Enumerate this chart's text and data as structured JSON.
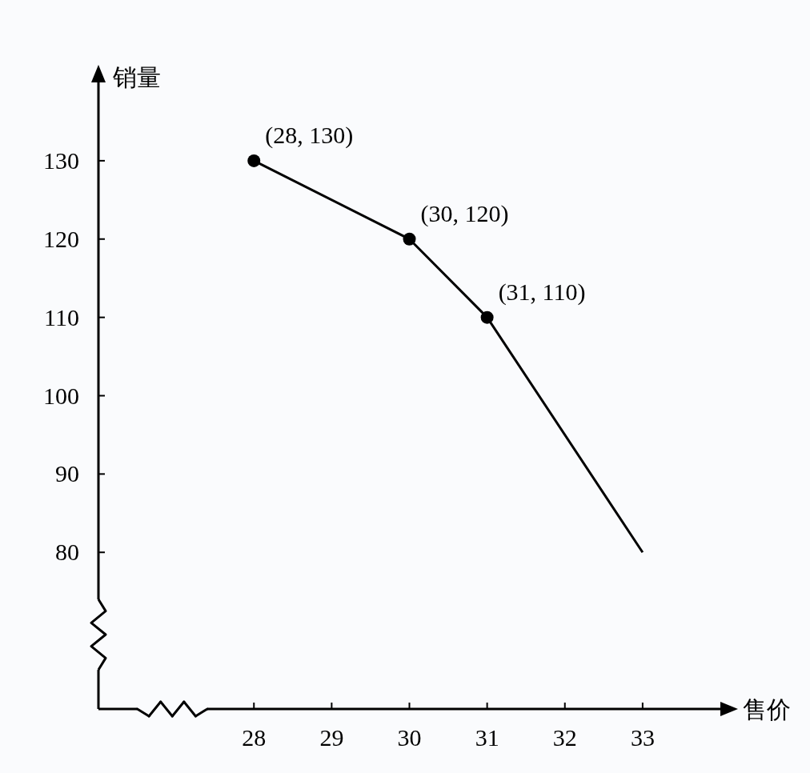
{
  "chart_data": {
    "type": "line",
    "xlabel": "售价",
    "ylabel": "销量",
    "xlim": [
      26,
      34
    ],
    "ylim": [
      60,
      140
    ],
    "xticks": [
      28,
      29,
      30,
      31,
      32,
      33
    ],
    "yticks": [
      80,
      90,
      100,
      110,
      120,
      130
    ],
    "series": [
      {
        "type": "line",
        "x": [
          28,
          30,
          31,
          33
        ],
        "values": [
          130,
          120,
          110,
          80
        ],
        "color": "#000000",
        "marker": "none"
      },
      {
        "type": "scatter",
        "x": [
          28,
          30,
          31
        ],
        "values": [
          130,
          120,
          110
        ],
        "color": "#000000",
        "marker": "circle"
      }
    ],
    "annotations": [
      {
        "text": "(28, 130)",
        "x": 28,
        "y": 130
      },
      {
        "text": "(30, 120)",
        "x": 30,
        "y": 120
      },
      {
        "text": "(31, 110)",
        "x": 31,
        "y": 110
      }
    ]
  }
}
